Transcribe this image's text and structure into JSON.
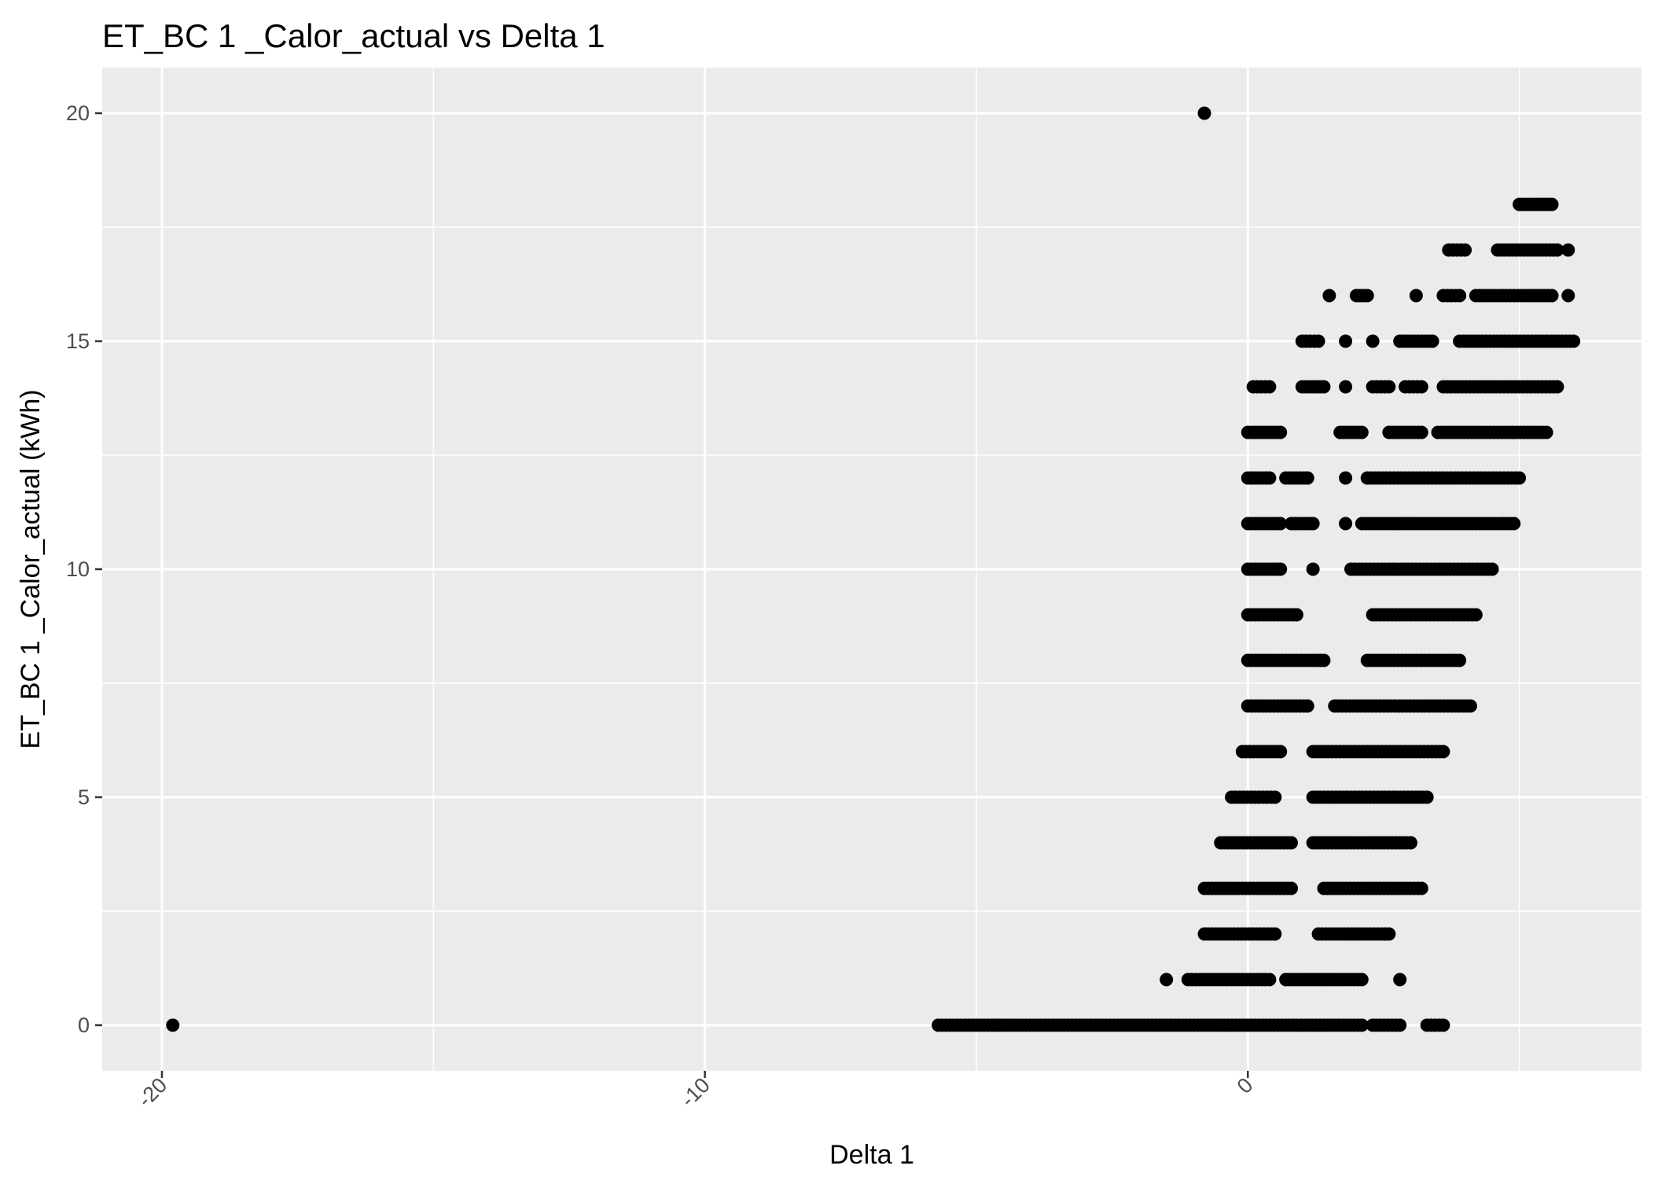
{
  "chart_data": {
    "type": "scatter",
    "title": "ET_BC 1 _Calor_actual vs Delta 1",
    "xlabel": "Delta 1",
    "ylabel": "ET_BC 1 _Calor_actual (kWh)",
    "xlim": [
      -21.1,
      7.25
    ],
    "ylim": [
      -1.0,
      21.0
    ],
    "x_ticks": [
      -20,
      -10,
      0
    ],
    "y_ticks": [
      0,
      5,
      10,
      15,
      20
    ],
    "x_tick_labels": [
      "-20",
      "-10",
      "0"
    ],
    "y_tick_labels": [
      "0",
      "5",
      "10",
      "15",
      "20"
    ],
    "grid": true,
    "legend": "none",
    "colors": {
      "panel": "#ebebeb",
      "grid": "#ffffff",
      "point": "#000000",
      "tick": "#333333"
    },
    "points": [
      {
        "x": -19.8,
        "y": 0
      },
      {
        "x": -0.8,
        "y": 20
      }
    ],
    "clusters": [
      {
        "y": 18,
        "ranges": [
          [
            5.0,
            5.6
          ]
        ]
      },
      {
        "y": 17,
        "ranges": [
          [
            3.7,
            4.0
          ],
          [
            4.6,
            5.7
          ],
          [
            5.9,
            5.9
          ]
        ]
      },
      {
        "y": 16,
        "ranges": [
          [
            1.5,
            1.5
          ],
          [
            2.0,
            2.2
          ],
          [
            3.1,
            3.1
          ],
          [
            3.6,
            3.9
          ],
          [
            4.2,
            5.6
          ],
          [
            5.9,
            5.9
          ]
        ]
      },
      {
        "y": 15,
        "ranges": [
          [
            1.0,
            1.3
          ],
          [
            1.8,
            1.8
          ],
          [
            2.3,
            2.3
          ],
          [
            2.8,
            3.4
          ],
          [
            3.9,
            6.0
          ]
        ]
      },
      {
        "y": 14,
        "ranges": [
          [
            0.1,
            0.4
          ],
          [
            1.0,
            1.4
          ],
          [
            1.8,
            1.8
          ],
          [
            2.3,
            2.6
          ],
          [
            2.9,
            3.2
          ],
          [
            3.6,
            5.7
          ]
        ]
      },
      {
        "y": 13,
        "ranges": [
          [
            0,
            0.6
          ],
          [
            1.7,
            2.1
          ],
          [
            2.6,
            3.2
          ],
          [
            3.5,
            5.5
          ]
        ]
      },
      {
        "y": 12,
        "ranges": [
          [
            0,
            0.4
          ],
          [
            0.7,
            1.1
          ],
          [
            1.8,
            1.8
          ],
          [
            2.2,
            5.0
          ]
        ]
      },
      {
        "y": 11,
        "ranges": [
          [
            0,
            0.6
          ],
          [
            0.8,
            1.2
          ],
          [
            1.8,
            1.8
          ],
          [
            2.1,
            4.9
          ]
        ]
      },
      {
        "y": 10,
        "ranges": [
          [
            0,
            0.6
          ],
          [
            1.2,
            1.2
          ],
          [
            1.9,
            4.5
          ]
        ]
      },
      {
        "y": 9,
        "ranges": [
          [
            0,
            0.9
          ],
          [
            2.3,
            4.2
          ]
        ]
      },
      {
        "y": 8,
        "ranges": [
          [
            0,
            1.4
          ],
          [
            2.2,
            3.9
          ]
        ]
      },
      {
        "y": 7,
        "ranges": [
          [
            0,
            1.1
          ],
          [
            1.6,
            4.1
          ]
        ]
      },
      {
        "y": 6,
        "ranges": [
          [
            -0.1,
            0.6
          ],
          [
            1.2,
            3.6
          ]
        ]
      },
      {
        "y": 5,
        "ranges": [
          [
            -0.3,
            0.5
          ],
          [
            1.2,
            3.3
          ]
        ]
      },
      {
        "y": 4,
        "ranges": [
          [
            -0.5,
            0.8
          ],
          [
            1.2,
            3.0
          ]
        ]
      },
      {
        "y": 3,
        "ranges": [
          [
            -0.8,
            0.8
          ],
          [
            1.4,
            3.2
          ]
        ]
      },
      {
        "y": 2,
        "ranges": [
          [
            -0.8,
            0.5
          ],
          [
            1.3,
            2.6
          ]
        ]
      },
      {
        "y": 1,
        "ranges": [
          [
            -1.5,
            -1.5
          ],
          [
            -1.1,
            0.4
          ],
          [
            0.7,
            2.1
          ],
          [
            2.8,
            2.8
          ]
        ]
      },
      {
        "y": 0,
        "ranges": [
          [
            -5.7,
            2.1
          ],
          [
            2.3,
            2.8
          ],
          [
            3.3,
            3.6
          ]
        ]
      }
    ]
  }
}
